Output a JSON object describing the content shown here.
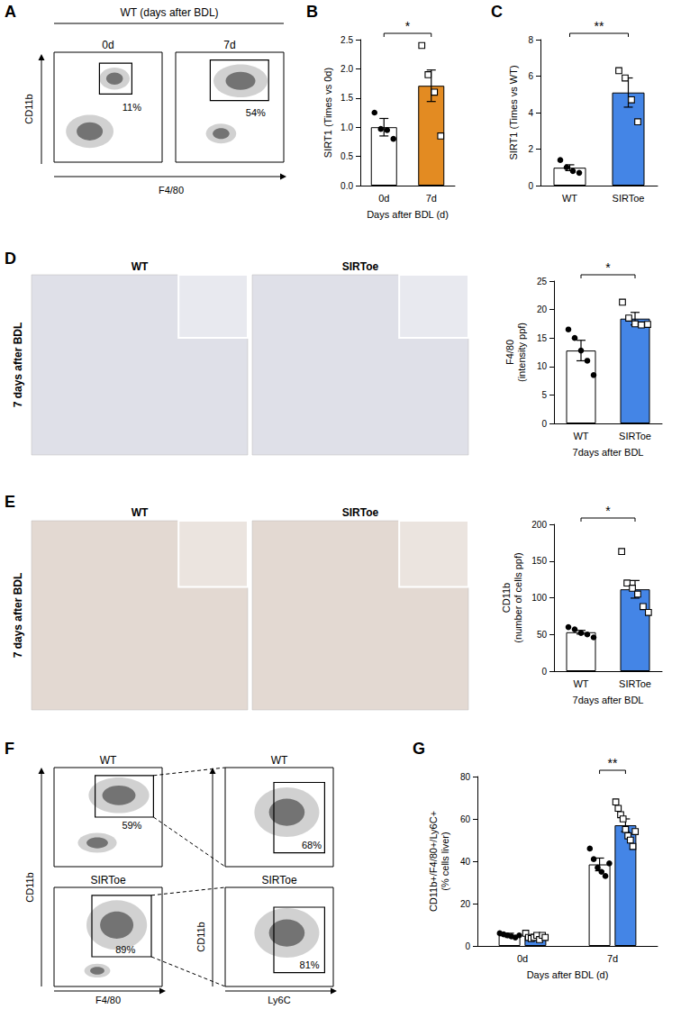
{
  "flow_panels": [
    {
      "panel": "A",
      "header": "WT (days after BDL)",
      "y": "CD11b",
      "x": "F4/80",
      "plots": [
        {
          "title": "0d",
          "gate": "11%"
        },
        {
          "title": "7d",
          "gate": "54%"
        }
      ]
    },
    {
      "panel": "F",
      "columns": [
        {
          "y": "CD11b",
          "x": "F4/80"
        },
        {
          "y": "CD11b",
          "x": "Ly6C"
        }
      ],
      "plots": [
        {
          "title": "WT",
          "gate": "59%"
        },
        {
          "title": "WT",
          "gate": "68%"
        },
        {
          "title": "SIRToe",
          "gate": "89%"
        },
        {
          "title": "SIRToe",
          "gate": "81%"
        }
      ]
    }
  ],
  "images": [
    {
      "row_label": "7 days after BDL",
      "columns": [
        "WT",
        "SIRToe"
      ]
    },
    {
      "row_label": "7 days after BDL",
      "columns": [
        "WT",
        "SIRToe"
      ]
    }
  ],
  "chart_data": [
    {
      "panel": "B",
      "type": "bar",
      "categories": [
        "0d",
        "7d"
      ],
      "values": [
        1.0,
        1.71
      ],
      "errors": [
        0.15,
        0.27
      ],
      "points": [
        [
          1.25,
          0.97,
          0.95,
          0.8
        ],
        [
          2.4,
          1.9,
          1.6,
          0.85
        ]
      ],
      "colors": [
        "#ffffff",
        "#e38b22"
      ],
      "ylabel": "SIRT1 (Times vs 0d)",
      "xlabel": "Days after BDL (d)",
      "ylim": [
        0,
        2.5
      ],
      "yticks": [
        {
          "value": 0,
          "label": "0.0"
        },
        0.5,
        {
          "value": 1,
          "label": "1.0"
        },
        1.5,
        {
          "value": 2,
          "label": "2.0"
        },
        2.5
      ],
      "annotations": [
        {
          "text": "*",
          "from": "0d",
          "to": "7d"
        }
      ]
    },
    {
      "panel": "C",
      "type": "bar",
      "categories": [
        "WT",
        "SIRToe"
      ],
      "values": [
        0.98,
        5.1
      ],
      "errors": [
        0.16,
        0.8
      ],
      "points": [
        [
          1.4,
          1.0,
          0.8,
          0.7
        ],
        [
          6.3,
          5.9,
          4.7,
          3.5
        ]
      ],
      "colors": [
        "#ffffff",
        "#4485e6"
      ],
      "ylabel": "SIRT1 (Times vs WT)",
      "ylim": [
        0,
        8
      ],
      "yticks": [
        0,
        2,
        4,
        6,
        8
      ],
      "annotations": [
        {
          "text": "**",
          "from": "WT",
          "to": "SIRToe"
        }
      ]
    },
    {
      "panel": "D",
      "type": "bar",
      "categories": [
        "WT",
        "SIRToe"
      ],
      "values": [
        12.8,
        18.4
      ],
      "errors": [
        1.8,
        1.1
      ],
      "points": [
        [
          16.5,
          15.0,
          12.8,
          11.0,
          8.5
        ],
        [
          21.3,
          18.5,
          17.5,
          17.3,
          17.4
        ]
      ],
      "colors": [
        "#ffffff",
        "#4485e6"
      ],
      "ylabel": "F4/80\n(intensity ppf)",
      "xlabel": "7days after BDL",
      "ylim": [
        0,
        25
      ],
      "yticks": [
        0,
        5,
        10,
        15,
        20,
        25
      ],
      "annotations": [
        {
          "text": "*",
          "from": "WT",
          "to": "SIRToe"
        }
      ]
    },
    {
      "panel": "E",
      "type": "bar",
      "categories": [
        "WT",
        "SIRToe"
      ],
      "values": [
        53,
        111.5
      ],
      "errors": [
        2.5,
        12
      ],
      "points": [
        [
          60,
          57,
          52,
          50,
          46
        ],
        [
          163,
          120,
          113,
          105,
          88,
          80
        ]
      ],
      "colors": [
        "#ffffff",
        "#4485e6"
      ],
      "ylabel": "CD11b\n(number of cells ppf)",
      "xlabel": "7days after BDL",
      "ylim": [
        0,
        200
      ],
      "yticks": [
        0,
        50,
        100,
        150,
        200
      ],
      "annotations": [
        {
          "text": "*",
          "from": "WT",
          "to": "SIRToe"
        }
      ]
    },
    {
      "panel": "G",
      "type": "bar",
      "categories": [
        "0d",
        "7d"
      ],
      "series": [
        {
          "color": "#ffffff",
          "values": [
            5,
            38.5
          ],
          "errors": [
            1,
            3
          ],
          "points": [
            [
              6,
              5.5,
              5,
              4.5,
              4,
              5
            ],
            [
              46,
              41,
              37,
              35,
              33,
              39
            ]
          ]
        },
        {
          "color": "#4485e6",
          "values": [
            4.5,
            57
          ],
          "errors": [
            1,
            3
          ],
          "points": [
            [
              6,
              4,
              3.5,
              4,
              5,
              3,
              5,
              4
            ],
            [
              68,
              65,
              62,
              60,
              55,
              52,
              50,
              47,
              54
            ]
          ]
        }
      ],
      "ylabel": "CD11b+/F4/80+/Ly6C+\n(% cells liver)",
      "xlabel": "Days after BDL (d)",
      "ylim": [
        0,
        80
      ],
      "yticks": [
        0,
        20,
        40,
        60,
        80
      ],
      "annotations": [
        {
          "text": "**",
          "category": "7d"
        }
      ]
    }
  ]
}
